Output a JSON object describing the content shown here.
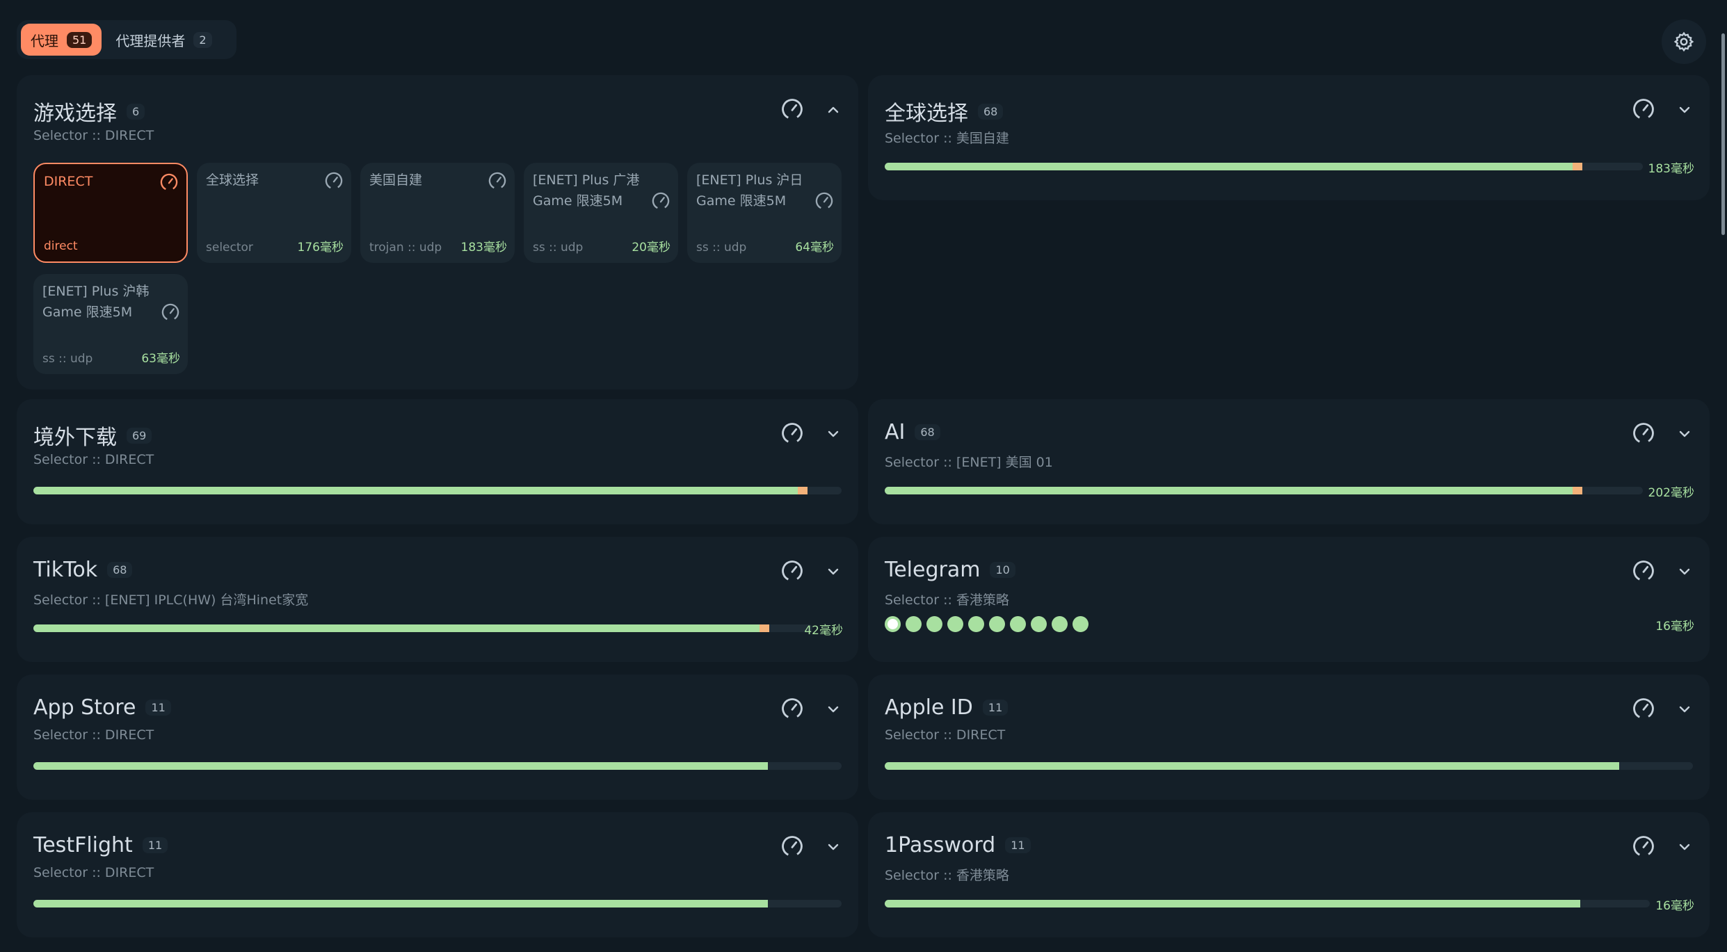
{
  "tabs": [
    {
      "label": "代理",
      "count": "51"
    },
    {
      "label": "代理提供者",
      "count": "2"
    }
  ],
  "colors": {
    "accent": "#ff8b64",
    "latency_good": "#a8e0a0",
    "latency_warn": "#f3b27a",
    "background": "#101a22",
    "card": "#141f28"
  },
  "groups": [
    {
      "name": "游戏选择",
      "count": "6",
      "type": "Selector :: DIRECT",
      "expanded": true,
      "nodes": [
        {
          "name": "DIRECT",
          "type": "direct",
          "latency": "",
          "selected": true
        },
        {
          "name": "全球选择",
          "type": "selector",
          "latency": "176毫秒",
          "selected": false
        },
        {
          "name": "美国自建",
          "type": "trojan :: udp",
          "latency": "183毫秒",
          "selected": false
        },
        {
          "name": "[ENET] Plus 广港 Game 限速5M",
          "type": "ss :: udp",
          "latency": "20毫秒",
          "selected": false
        },
        {
          "name": "[ENET] Plus 沪日 Game 限速5M",
          "type": "ss :: udp",
          "latency": "64毫秒",
          "selected": false
        },
        {
          "name": "[ENET] Plus 沪韩 Game 限速5M",
          "type": "ss :: udp",
          "latency": "63毫秒",
          "selected": false
        }
      ]
    },
    {
      "name": "全球选择",
      "count": "68",
      "type": "Selector :: 美国自建",
      "latency": "183毫秒",
      "progress": 0.92
    },
    {
      "name": "境外下载",
      "count": "69",
      "type": "Selector :: DIRECT",
      "latency": "",
      "progress": 0.958
    },
    {
      "name": "AI",
      "count": "68",
      "type": "Selector :: [ENET] 美国 01",
      "latency": "202毫秒",
      "progress": 0.92
    },
    {
      "name": "TikTok",
      "count": "68",
      "type": "Selector :: [ENET] IPLC(HW) 台湾Hinet家宽",
      "latency": "42毫秒",
      "progress": 0.945
    },
    {
      "name": "Telegram",
      "count": "10",
      "type": "Selector :: 香港策略",
      "latency": "16毫秒",
      "dot_count": 10
    },
    {
      "name": "App Store",
      "count": "11",
      "type": "Selector :: DIRECT",
      "latency": "",
      "progress": 0.909
    },
    {
      "name": "Apple ID",
      "count": "11",
      "type": "Selector :: DIRECT",
      "latency": "",
      "progress": 0.909
    },
    {
      "name": "TestFlight",
      "count": "11",
      "type": "Selector :: DIRECT",
      "latency": "",
      "progress": 0.909
    },
    {
      "name": "1Password",
      "count": "11",
      "type": "Selector :: 香港策略",
      "latency": "16毫秒",
      "progress": 0.909
    }
  ],
  "icons": {
    "settings": "gear-icon",
    "speed_test": "speedometer-icon",
    "collapse": "chevron-up-icon",
    "expand": "chevron-down-icon"
  }
}
